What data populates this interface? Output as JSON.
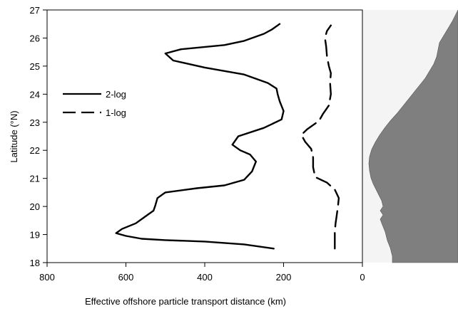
{
  "chart_data": {
    "type": "line",
    "xlabel": "Effective offshore particle transport distance (km)",
    "ylabel": "Latitude (°N)",
    "xlim": [
      800,
      0
    ],
    "ylim": [
      18,
      27
    ],
    "x_reversed": true,
    "x_ticks": [
      "800",
      "600",
      "400",
      "200",
      "0"
    ],
    "y_ticks": [
      "18",
      "19",
      "20",
      "21",
      "22",
      "23",
      "24",
      "25",
      "26",
      "27"
    ],
    "grid": false,
    "legend_position": "left",
    "series": [
      {
        "name": "2-log",
        "style": "solid",
        "points": [
          [
            225,
            18.5
          ],
          [
            300,
            18.65
          ],
          [
            400,
            18.75
          ],
          [
            500,
            18.8
          ],
          [
            560,
            18.85
          ],
          [
            600,
            18.95
          ],
          [
            625,
            19.05
          ],
          [
            610,
            19.2
          ],
          [
            575,
            19.4
          ],
          [
            560,
            19.55
          ],
          [
            545,
            19.7
          ],
          [
            530,
            19.85
          ],
          [
            525,
            20.05
          ],
          [
            520,
            20.3
          ],
          [
            500,
            20.5
          ],
          [
            420,
            20.65
          ],
          [
            350,
            20.75
          ],
          [
            300,
            20.95
          ],
          [
            280,
            21.25
          ],
          [
            270,
            21.6
          ],
          [
            285,
            21.85
          ],
          [
            310,
            22.0
          ],
          [
            330,
            22.2
          ],
          [
            315,
            22.5
          ],
          [
            250,
            22.8
          ],
          [
            205,
            23.1
          ],
          [
            200,
            23.4
          ],
          [
            210,
            23.75
          ],
          [
            215,
            24.0
          ],
          [
            218,
            24.2
          ],
          [
            240,
            24.4
          ],
          [
            300,
            24.7
          ],
          [
            400,
            24.95
          ],
          [
            480,
            25.2
          ],
          [
            500,
            25.45
          ],
          [
            460,
            25.6
          ],
          [
            350,
            25.75
          ],
          [
            300,
            25.9
          ],
          [
            250,
            26.15
          ],
          [
            230,
            26.3
          ],
          [
            210,
            26.5
          ]
        ]
      },
      {
        "name": "1-log",
        "style": "dashed",
        "points": [
          [
            70,
            18.5
          ],
          [
            70,
            18.8
          ],
          [
            70,
            19.1
          ],
          [
            68,
            19.4
          ],
          [
            65,
            19.7
          ],
          [
            62,
            20.0
          ],
          [
            60,
            20.3
          ],
          [
            70,
            20.6
          ],
          [
            90,
            20.85
          ],
          [
            120,
            21.05
          ],
          [
            125,
            21.4
          ],
          [
            125,
            21.75
          ],
          [
            130,
            22.05
          ],
          [
            145,
            22.3
          ],
          [
            155,
            22.55
          ],
          [
            140,
            22.75
          ],
          [
            110,
            23.05
          ],
          [
            100,
            23.3
          ],
          [
            85,
            23.6
          ],
          [
            80,
            24.0
          ],
          [
            82,
            24.4
          ],
          [
            80,
            24.75
          ],
          [
            85,
            25.0
          ],
          [
            90,
            25.35
          ],
          [
            92,
            25.7
          ],
          [
            95,
            26.0
          ],
          [
            90,
            26.25
          ],
          [
            80,
            26.45
          ]
        ]
      }
    ]
  }
}
